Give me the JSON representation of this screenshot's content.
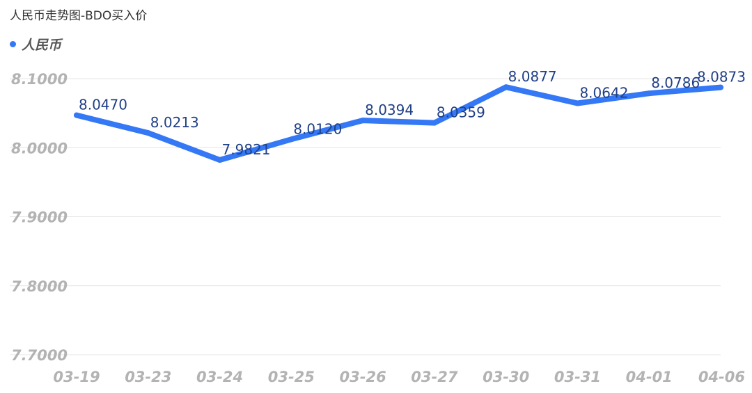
{
  "title": "人民币走势图-BDO买入价",
  "legend": {
    "label": "人民币",
    "color": "#3478f6"
  },
  "chart_data": {
    "type": "line",
    "title": "人民币走势图-BDO买入价",
    "xlabel": "",
    "ylabel": "",
    "categories": [
      "03-19",
      "03-23",
      "03-24",
      "03-25",
      "03-26",
      "03-27",
      "03-30",
      "03-31",
      "04-01",
      "04-06"
    ],
    "series": [
      {
        "name": "人民币",
        "color": "#3478f6",
        "values": [
          8.047,
          8.0213,
          7.9821,
          8.012,
          8.0394,
          8.0359,
          8.0877,
          8.0642,
          8.0786,
          8.0873
        ],
        "labels": [
          "8.0470",
          "8.0213",
          "7.9821",
          "8.0120",
          "8.0394",
          "8.0359",
          "8.0877",
          "8.0642",
          "8.0786",
          "8.0873"
        ]
      }
    ],
    "ylim": [
      7.7,
      8.1
    ],
    "yticks": [
      "8.1000",
      "8.0000",
      "7.9000",
      "7.8000",
      "7.7000"
    ],
    "grid": true,
    "legend_position": "top-left"
  }
}
